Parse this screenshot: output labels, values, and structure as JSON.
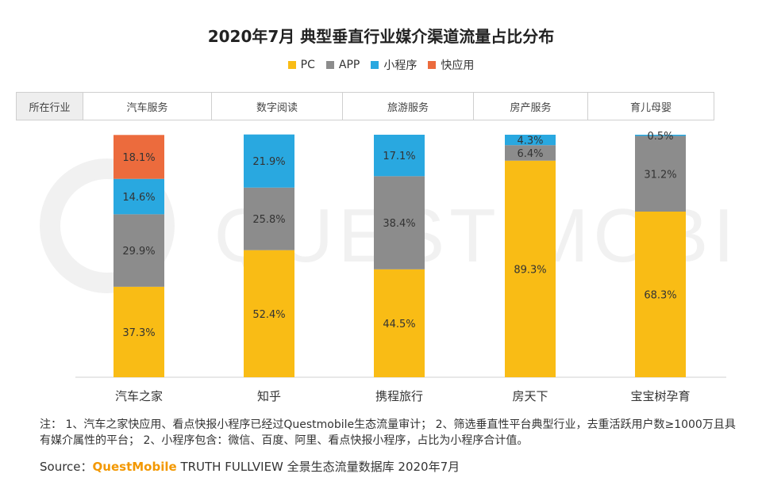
{
  "chart_data": {
    "type": "bar",
    "stacked": true,
    "title": "2020年7月 典型垂直行业媒介渠道流量占比分布",
    "categories": [
      "汽车之家",
      "知乎",
      "携程旅行",
      "房天下",
      "宝宝树孕育"
    ],
    "series": [
      {
        "name": "PC",
        "color": "#f9bc15",
        "values": [
          37.3,
          52.4,
          44.5,
          89.3,
          68.3
        ],
        "labels": [
          "37.3%",
          "52.4%",
          "44.5%",
          "89.3%",
          "68.3%"
        ]
      },
      {
        "name": "APP",
        "color": "#8c8c8c",
        "values": [
          29.9,
          25.8,
          38.4,
          6.4,
          31.2
        ],
        "labels": [
          "29.9%",
          "25.8%",
          "38.4%",
          "6.4%",
          "31.2%"
        ]
      },
      {
        "name": "小程序",
        "color": "#29a8e0",
        "values": [
          14.6,
          21.9,
          17.1,
          4.3,
          0.5
        ],
        "labels": [
          "14.6%",
          "21.9%",
          "17.1%",
          "4.3%",
          "0.5%"
        ]
      },
      {
        "name": "快应用",
        "color": "#ec6b3d",
        "values": [
          18.1,
          0,
          0,
          0,
          0
        ],
        "labels": [
          "18.1%",
          "",
          "",
          "",
          ""
        ]
      }
    ],
    "ylim": [
      0,
      100
    ],
    "xlabel": "",
    "ylabel": ""
  },
  "industry": {
    "header": "所在行业",
    "items": [
      "汽车服务",
      "数字阅读",
      "旅游服务",
      "房产服务",
      "育儿母婴"
    ]
  },
  "notes": {
    "text": "注： 1、汽车之家快应用、看点快报小程序已经过Questmobile生态流量审计； 2、筛选垂直性平台典型行业，去重活跃用户数≥1000万且具有媒介属性的平台； 2、小程序包含：微信、百度、阿里、看点快报小程序，占比为小程序合计值。"
  },
  "source": {
    "prefix": "Source：",
    "brand": "QuestMobile",
    "rest": " TRUTH FULLVIEW 全景生态流量数据库 2020年7月"
  },
  "watermark": {
    "text": "QUEST MOBILE"
  }
}
